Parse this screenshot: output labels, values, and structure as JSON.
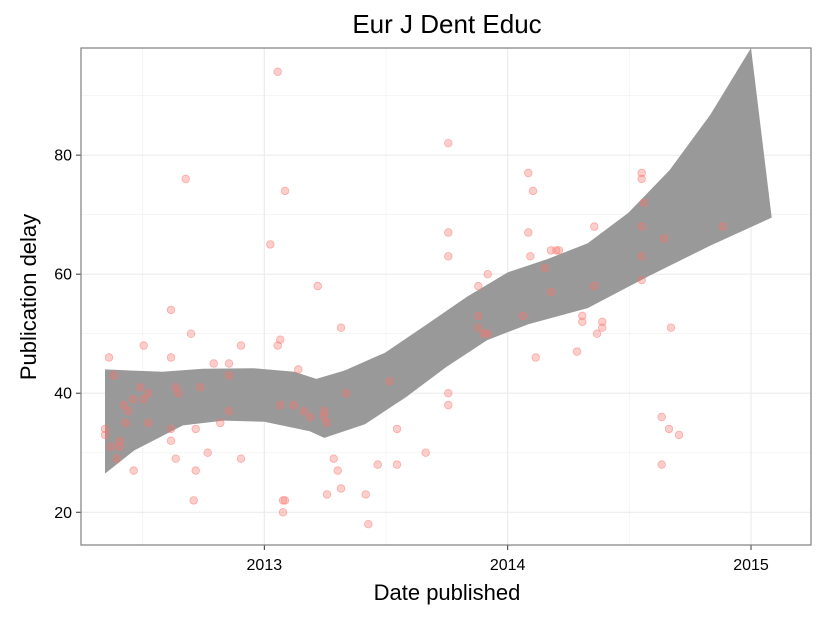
{
  "chart_data": {
    "type": "scatter",
    "title": "Eur J Dent Educ",
    "xlabel": "Date published",
    "ylabel": "Publication delay",
    "xlim": [
      "2012-04-01",
      "2015-04-01"
    ],
    "ylim": [
      14.5,
      98
    ],
    "x_ticks": [
      "2013-01-01",
      "2014-01-01",
      "2015-01-01"
    ],
    "x_tick_labels": [
      "2013",
      "2014",
      "2015"
    ],
    "y_ticks": [
      20,
      40,
      60,
      80
    ],
    "y_tick_labels": [
      "20",
      "40",
      "60",
      "80"
    ],
    "grid": true,
    "point_color": "#f8766d",
    "band_color": "#999999",
    "points": [
      {
        "x": "2012-05-07",
        "y": 34
      },
      {
        "x": "2012-05-07",
        "y": 33
      },
      {
        "x": "2012-05-13",
        "y": 46
      },
      {
        "x": "2012-05-16",
        "y": 31
      },
      {
        "x": "2012-05-21",
        "y": 43
      },
      {
        "x": "2012-05-25",
        "y": 29
      },
      {
        "x": "2012-05-29",
        "y": 32
      },
      {
        "x": "2012-05-29",
        "y": 31
      },
      {
        "x": "2012-06-04",
        "y": 38
      },
      {
        "x": "2012-06-07",
        "y": 35
      },
      {
        "x": "2012-06-11",
        "y": 37
      },
      {
        "x": "2012-06-19",
        "y": 27
      },
      {
        "x": "2012-06-18",
        "y": 39
      },
      {
        "x": "2012-06-29",
        "y": 41
      },
      {
        "x": "2012-07-04",
        "y": 48
      },
      {
        "x": "2012-07-04",
        "y": 39
      },
      {
        "x": "2012-07-11",
        "y": 40
      },
      {
        "x": "2012-07-11",
        "y": 35
      },
      {
        "x": "2012-08-14",
        "y": 54
      },
      {
        "x": "2012-08-14",
        "y": 46
      },
      {
        "x": "2012-08-14",
        "y": 34
      },
      {
        "x": "2012-08-14",
        "y": 32
      },
      {
        "x": "2012-08-21",
        "y": 41
      },
      {
        "x": "2012-08-21",
        "y": 29
      },
      {
        "x": "2012-08-25",
        "y": 40
      },
      {
        "x": "2012-09-05",
        "y": 76
      },
      {
        "x": "2012-09-13",
        "y": 50
      },
      {
        "x": "2012-09-17",
        "y": 22
      },
      {
        "x": "2012-09-20",
        "y": 34
      },
      {
        "x": "2012-09-20",
        "y": 27
      },
      {
        "x": "2012-09-27",
        "y": 41
      },
      {
        "x": "2012-10-08",
        "y": 30
      },
      {
        "x": "2012-10-17",
        "y": 45
      },
      {
        "x": "2012-10-27",
        "y": 35
      },
      {
        "x": "2012-11-09",
        "y": 45
      },
      {
        "x": "2012-11-09",
        "y": 43
      },
      {
        "x": "2012-11-09",
        "y": 37
      },
      {
        "x": "2012-11-27",
        "y": 48
      },
      {
        "x": "2012-11-27",
        "y": 29
      },
      {
        "x": "2013-01-10",
        "y": 65
      },
      {
        "x": "2013-01-21",
        "y": 94
      },
      {
        "x": "2013-01-21",
        "y": 48
      },
      {
        "x": "2013-01-25",
        "y": 49
      },
      {
        "x": "2013-01-25",
        "y": 38
      },
      {
        "x": "2013-01-29",
        "y": 22
      },
      {
        "x": "2013-02-01",
        "y": 74
      },
      {
        "x": "2013-01-29",
        "y": 20
      },
      {
        "x": "2013-02-01",
        "y": 22
      },
      {
        "x": "2013-02-14",
        "y": 38
      },
      {
        "x": "2013-02-21",
        "y": 44
      },
      {
        "x": "2013-03-01",
        "y": 37
      },
      {
        "x": "2013-03-11",
        "y": 36
      },
      {
        "x": "2013-03-22",
        "y": 58
      },
      {
        "x": "2013-04-01",
        "y": 37
      },
      {
        "x": "2013-04-01",
        "y": 36
      },
      {
        "x": "2013-04-05",
        "y": 35
      },
      {
        "x": "2013-04-05",
        "y": 23
      },
      {
        "x": "2013-04-15",
        "y": 29
      },
      {
        "x": "2013-04-21",
        "y": 27
      },
      {
        "x": "2013-04-26",
        "y": 51
      },
      {
        "x": "2013-04-26",
        "y": 24
      },
      {
        "x": "2013-05-04",
        "y": 40
      },
      {
        "x": "2013-06-02",
        "y": 23
      },
      {
        "x": "2013-06-06",
        "y": 18
      },
      {
        "x": "2013-06-20",
        "y": 28
      },
      {
        "x": "2013-07-08",
        "y": 42
      },
      {
        "x": "2013-07-19",
        "y": 34
      },
      {
        "x": "2013-07-19",
        "y": 28
      },
      {
        "x": "2013-08-31",
        "y": 30
      },
      {
        "x": "2013-10-04",
        "y": 82
      },
      {
        "x": "2013-10-04",
        "y": 67
      },
      {
        "x": "2013-10-04",
        "y": 63
      },
      {
        "x": "2013-10-04",
        "y": 40
      },
      {
        "x": "2013-10-04",
        "y": 38
      },
      {
        "x": "2013-11-18",
        "y": 58
      },
      {
        "x": "2013-11-18",
        "y": 53
      },
      {
        "x": "2013-11-18",
        "y": 51
      },
      {
        "x": "2013-11-26",
        "y": 50
      },
      {
        "x": "2013-12-02",
        "y": 60
      },
      {
        "x": "2013-12-02",
        "y": 50
      },
      {
        "x": "2014-01-24",
        "y": 53
      },
      {
        "x": "2014-02-01",
        "y": 77
      },
      {
        "x": "2014-02-01",
        "y": 67
      },
      {
        "x": "2014-02-04",
        "y": 63
      },
      {
        "x": "2014-02-08",
        "y": 74
      },
      {
        "x": "2014-02-12",
        "y": 46
      },
      {
        "x": "2014-02-26",
        "y": 61
      },
      {
        "x": "2014-03-07",
        "y": 57
      },
      {
        "x": "2014-03-07",
        "y": 64
      },
      {
        "x": "2014-03-15",
        "y": 64
      },
      {
        "x": "2014-03-19",
        "y": 64
      },
      {
        "x": "2014-04-15",
        "y": 47
      },
      {
        "x": "2014-04-23",
        "y": 53
      },
      {
        "x": "2014-04-23",
        "y": 52
      },
      {
        "x": "2014-05-11",
        "y": 68
      },
      {
        "x": "2014-05-11",
        "y": 58
      },
      {
        "x": "2014-05-15",
        "y": 50
      },
      {
        "x": "2014-05-23",
        "y": 51
      },
      {
        "x": "2014-05-23",
        "y": 52
      },
      {
        "x": "2014-07-21",
        "y": 77
      },
      {
        "x": "2014-07-21",
        "y": 76
      },
      {
        "x": "2014-07-21",
        "y": 68
      },
      {
        "x": "2014-07-21",
        "y": 63
      },
      {
        "x": "2014-07-21",
        "y": 59
      },
      {
        "x": "2014-07-24",
        "y": 72
      },
      {
        "x": "2014-08-20",
        "y": 36
      },
      {
        "x": "2014-08-20",
        "y": 28
      },
      {
        "x": "2014-08-24",
        "y": 66
      },
      {
        "x": "2014-08-31",
        "y": 34
      },
      {
        "x": "2014-09-03",
        "y": 51
      },
      {
        "x": "2014-09-15",
        "y": 33
      },
      {
        "x": "2014-11-20",
        "y": 68
      }
    ],
    "band_upper": [
      {
        "x": "2012-05-07",
        "y": 44
      },
      {
        "x": "2012-08-01",
        "y": 43.6
      },
      {
        "x": "2012-10-01",
        "y": 44.1
      },
      {
        "x": "2012-12-15",
        "y": 44.2
      },
      {
        "x": "2013-02-15",
        "y": 43.6
      },
      {
        "x": "2013-03-20",
        "y": 42.4
      },
      {
        "x": "2013-05-01",
        "y": 43.8
      },
      {
        "x": "2013-07-01",
        "y": 46.8
      },
      {
        "x": "2013-09-01",
        "y": 51.5
      },
      {
        "x": "2013-11-01",
        "y": 56.2
      },
      {
        "x": "2014-01-01",
        "y": 60.3
      },
      {
        "x": "2014-03-01",
        "y": 62.5
      },
      {
        "x": "2014-05-01",
        "y": 65.2
      },
      {
        "x": "2014-07-01",
        "y": 70.3
      },
      {
        "x": "2014-09-01",
        "y": 77.5
      },
      {
        "x": "2014-11-01",
        "y": 86.8
      },
      {
        "x": "2015-01-01",
        "y": 98
      }
    ],
    "band_lower": [
      {
        "x": "2012-05-07",
        "y": 26.5
      },
      {
        "x": "2012-06-20",
        "y": 30.4
      },
      {
        "x": "2012-09-01",
        "y": 34.6
      },
      {
        "x": "2012-11-01",
        "y": 35.4
      },
      {
        "x": "2013-01-01",
        "y": 35.2
      },
      {
        "x": "2013-03-10",
        "y": 33.6
      },
      {
        "x": "2013-04-01",
        "y": 32.5
      },
      {
        "x": "2013-06-01",
        "y": 34.8
      },
      {
        "x": "2013-08-01",
        "y": 39.3
      },
      {
        "x": "2013-10-01",
        "y": 44.4
      },
      {
        "x": "2013-12-01",
        "y": 48.9
      },
      {
        "x": "2014-02-01",
        "y": 51.6
      },
      {
        "x": "2014-05-01",
        "y": 54.3
      },
      {
        "x": "2014-08-01",
        "y": 59.7
      },
      {
        "x": "2014-11-01",
        "y": 64.8
      },
      {
        "x": "2015-02-01",
        "y": 69.5
      }
    ]
  }
}
